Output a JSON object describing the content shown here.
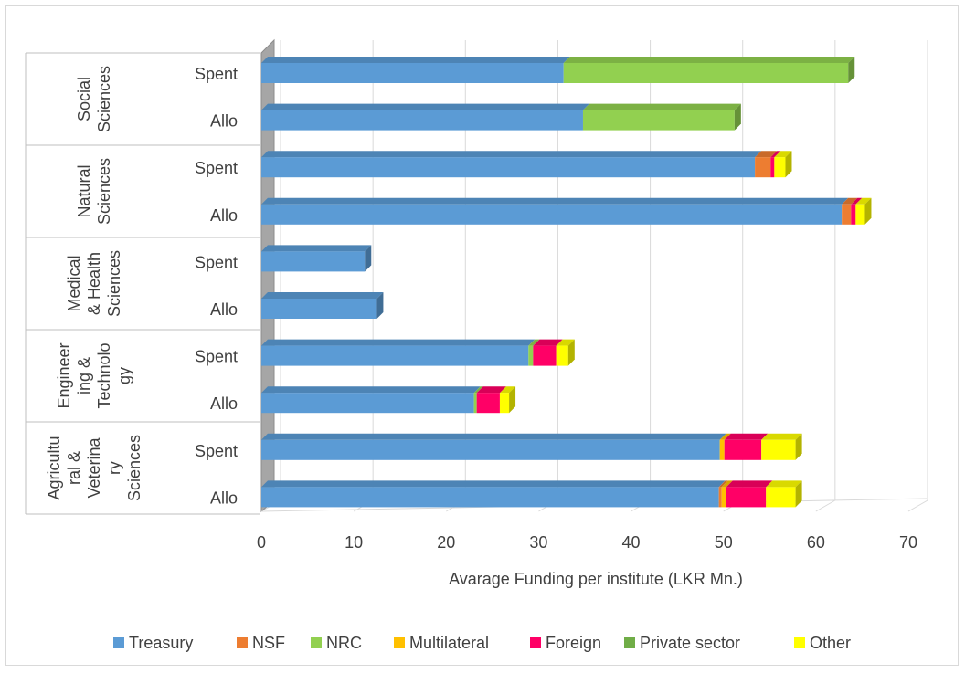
{
  "chart_data": {
    "type": "bar",
    "orientation": "horizontal",
    "stacked": true,
    "three_d": true,
    "xlabel": "Avarage Funding per institute (LKR Mn.)",
    "xlim": [
      0,
      70
    ],
    "xticks": [
      0,
      10,
      20,
      30,
      40,
      50,
      60,
      70
    ],
    "grid": true,
    "legend_position": "bottom",
    "groups": [
      {
        "label": [
          "Social",
          "Sciences"
        ],
        "categories": [
          "Spent",
          "Allo"
        ]
      },
      {
        "label": [
          "Natural",
          "Sciences"
        ],
        "categories": [
          "Spent",
          "Allo"
        ]
      },
      {
        "label": [
          "Medical",
          "& Health",
          "Sciences"
        ],
        "categories": [
          "Spent",
          "Allo"
        ]
      },
      {
        "label": [
          "Engineer",
          "ing &",
          "Technolo",
          "gy"
        ],
        "categories": [
          "Spent",
          "Allo"
        ]
      },
      {
        "label": [
          "Agricultu",
          "ral &",
          "Veterina",
          "ry",
          "Sciences"
        ],
        "categories": [
          "Spent",
          "Allo"
        ]
      }
    ],
    "series": [
      {
        "name": "Treasury",
        "color": "#5b9bd5",
        "values": [
          32.7,
          34.8,
          53.4,
          62.8,
          11.2,
          12.5,
          28.9,
          23.0,
          49.6,
          49.5
        ]
      },
      {
        "name": "NSF",
        "color": "#ed7d31",
        "values": [
          0,
          0,
          1.7,
          1.0,
          0,
          0,
          0,
          0,
          0,
          0.3
        ]
      },
      {
        "name": "NRC",
        "color": "#92d050",
        "values": [
          30.8,
          16.4,
          0,
          0,
          0,
          0,
          0.5,
          0.3,
          0,
          0
        ]
      },
      {
        "name": "Multilateral",
        "color": "#ffc000",
        "values": [
          0,
          0,
          0,
          0,
          0,
          0,
          0,
          0,
          0.5,
          0.5
        ]
      },
      {
        "name": "Foreign",
        "color": "#ff0066",
        "values": [
          0,
          0,
          0.4,
          0.5,
          0,
          0,
          2.5,
          2.5,
          4.0,
          4.3
        ]
      },
      {
        "name": "Private sector",
        "color": "#70ad47",
        "values": [
          0,
          0,
          0,
          0,
          0,
          0,
          0,
          0,
          0,
          0
        ]
      },
      {
        "name": "Other",
        "color": "#ffff00",
        "values": [
          0,
          0,
          1.2,
          1.0,
          0,
          0,
          1.3,
          1.0,
          3.7,
          3.2
        ]
      }
    ]
  }
}
